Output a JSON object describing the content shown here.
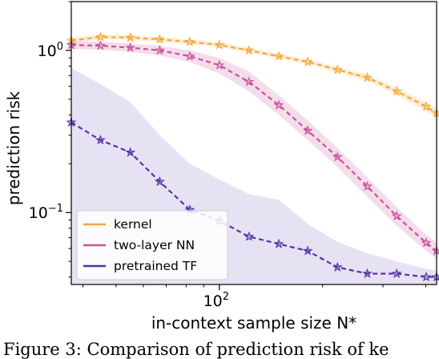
{
  "chart_data": {
    "type": "line",
    "xlabel": "in-context sample size N*",
    "ylabel": "prediction risk",
    "x_scale": "log",
    "y_scale": "log",
    "xlim": [
      37,
      430
    ],
    "ylim": [
      0.036,
      2.0
    ],
    "x_ticks": [
      {
        "value": 100,
        "base": "10",
        "exp": "2"
      }
    ],
    "y_ticks": [
      {
        "value": 1,
        "base": "10",
        "exp": "0"
      },
      {
        "value": 0.1,
        "base": "10",
        "exp": "−1"
      }
    ],
    "legend": {
      "location": "lower-left"
    },
    "grid": false,
    "x": [
      37,
      45,
      55,
      67,
      82,
      100,
      122,
      149,
      181,
      221,
      270,
      329,
      401,
      430
    ],
    "series": [
      {
        "name": "kernel",
        "color": "#f4a93a",
        "values": [
          1.15,
          1.21,
          1.2,
          1.17,
          1.13,
          1.08,
          1.0,
          0.92,
          0.85,
          0.76,
          0.68,
          0.56,
          0.45,
          0.41
        ],
        "band_low": [
          1.1,
          1.17,
          1.16,
          1.13,
          1.09,
          1.05,
          0.97,
          0.89,
          0.82,
          0.73,
          0.65,
          0.53,
          0.42,
          0.38
        ],
        "band_high": [
          1.2,
          1.26,
          1.24,
          1.21,
          1.17,
          1.12,
          1.04,
          0.95,
          0.88,
          0.79,
          0.71,
          0.59,
          0.48,
          0.44
        ]
      },
      {
        "name": "two-layer NN",
        "color": "#c9539a",
        "values": [
          1.08,
          1.07,
          1.04,
          1.0,
          0.92,
          0.81,
          0.64,
          0.46,
          0.32,
          0.22,
          0.145,
          0.095,
          0.065,
          0.058
        ],
        "band_low": [
          1.02,
          1.01,
          0.98,
          0.93,
          0.85,
          0.72,
          0.56,
          0.4,
          0.28,
          0.19,
          0.125,
          0.083,
          0.058,
          0.052
        ],
        "band_high": [
          1.14,
          1.13,
          1.1,
          1.07,
          1.0,
          0.9,
          0.74,
          0.53,
          0.37,
          0.25,
          0.165,
          0.108,
          0.073,
          0.065
        ]
      },
      {
        "name": "pretrained TF",
        "color": "#5533aa",
        "values": [
          0.36,
          0.28,
          0.235,
          0.155,
          0.104,
          0.089,
          0.071,
          0.064,
          0.058,
          0.046,
          0.042,
          0.042,
          0.04,
          0.04
        ],
        "band_low": [
          0.036,
          0.036,
          0.036,
          0.036,
          0.036,
          0.036,
          0.036,
          0.036,
          0.036,
          0.036,
          0.036,
          0.036,
          0.036,
          0.036
        ],
        "band_high": [
          0.78,
          0.62,
          0.48,
          0.3,
          0.2,
          0.16,
          0.13,
          0.12,
          0.085,
          0.066,
          0.056,
          0.05,
          0.045,
          0.044
        ]
      }
    ]
  },
  "caption": "Figure 3: Comparison of prediction risk of ke"
}
